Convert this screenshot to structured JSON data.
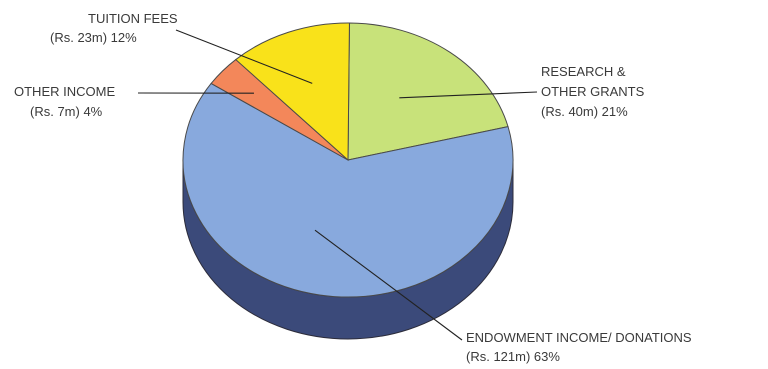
{
  "chart_data": {
    "type": "pie",
    "title": "",
    "slices": [
      {
        "label": "RESEARCH & OTHER GRANTS",
        "label_lines": [
          "RESEARCH &",
          "OTHER GRANTS"
        ],
        "value_text": "(Rs. 40m) 21%",
        "amount": 40,
        "percent": 21,
        "color": "#c8e27a",
        "side_color": "#6e8a34"
      },
      {
        "label": "ENDOWMENT INCOME/ DONATIONS",
        "label_lines": [
          "ENDOWMENT INCOME/ DONATIONS"
        ],
        "value_text": "(Rs. 121m) 63%",
        "amount": 121,
        "percent": 63,
        "color": "#88a9dd",
        "side_color": "#3b4a7a"
      },
      {
        "label": "OTHER INCOME",
        "label_lines": [
          "OTHER INCOME"
        ],
        "value_text": "(Rs. 7m) 4%",
        "amount": 7,
        "percent": 4,
        "color": "#f3875a",
        "side_color": "#a04a2a"
      },
      {
        "label": "TUITION FEES",
        "label_lines": [
          "TUITION FEES"
        ],
        "value_text": "(Rs. 23m) 12%",
        "amount": 23,
        "percent": 12,
        "color": "#f9e21a",
        "side_color": "#9c8a10"
      }
    ],
    "unit": "Rs. m",
    "legend": "none",
    "style": "3d-pie"
  }
}
